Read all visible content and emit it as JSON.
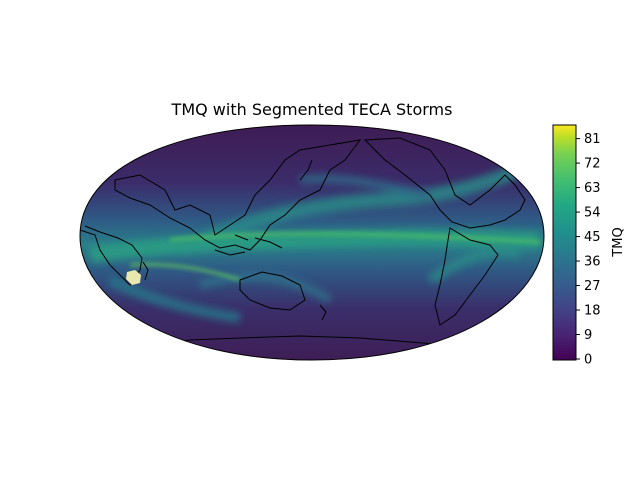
{
  "title": "TMQ with Segmented TECA Storms",
  "colorbar": {
    "label": "TMQ",
    "ticks": [
      "0",
      "9",
      "18",
      "27",
      "36",
      "45",
      "54",
      "63",
      "72",
      "81"
    ],
    "colormap": "viridis"
  },
  "map": {
    "projection": "Robinson",
    "central_longitude": "180",
    "storm_highlight_color": "#f3f0b0"
  }
}
